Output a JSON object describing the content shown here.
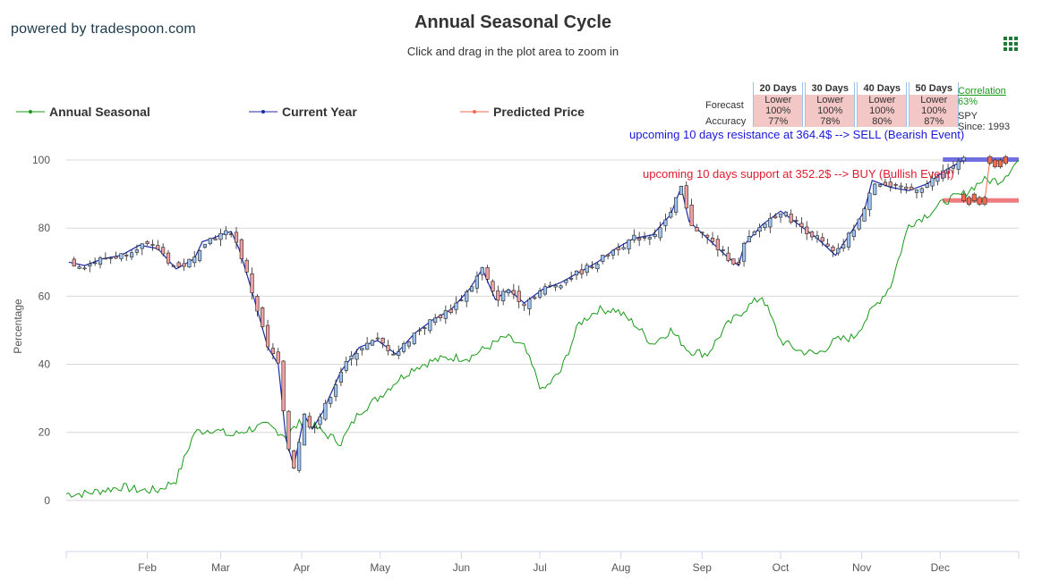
{
  "brand": "powered by tradespoon.com",
  "title": "Annual Seasonal Cycle",
  "subtitle": "Click and drag in the plot area to zoom in",
  "menu_icon": "grid-menu-icon",
  "legend": [
    {
      "label": "Annual Seasonal",
      "color": "#1a9a1a"
    },
    {
      "label": "Current Year",
      "color": "#1c2aa8"
    },
    {
      "label": "Predicted Price",
      "color": "#f26b4f"
    }
  ],
  "forecast": {
    "headers": [
      "20 Days",
      "30 Days",
      "40 Days",
      "50 Days"
    ],
    "rows": [
      {
        "label": "Forecast",
        "cells": [
          "Lower\n100%",
          "Lower\n100%",
          "Lower\n100%",
          "Lower\n100%"
        ]
      },
      {
        "label": "Accuracy",
        "cells": [
          "77%",
          "78%",
          "80%",
          "87%"
        ]
      }
    ]
  },
  "correlation": {
    "link": "Correlation",
    "value": "63%",
    "symbol": "SPY",
    "since": "Since: 1993"
  },
  "annotations": {
    "resistance": "upcoming 10 days resistance at 364.4$ --> SELL (Bearish Event)",
    "support": "upcoming 10 days support at 352.2$ --> BUY (Bullish Event)"
  },
  "colors": {
    "seasonal": "#1a9a1a",
    "current": "#1c2aa8",
    "predicted": "#f26b4f",
    "resistance": "#6f6fe0",
    "support": "#f07b80",
    "candle_up": "#9fc3f0",
    "candle_down": "#f0a0a0"
  },
  "chart_data": {
    "type": "line",
    "ylabel": "Percentage",
    "ylim": [
      -15,
      105
    ],
    "yticks": [
      0,
      20,
      40,
      60,
      80,
      100
    ],
    "x_range": [
      "Jan 1",
      "Dec 31"
    ],
    "xticks": [
      "Feb",
      "Mar",
      "Apr",
      "May",
      "Jun",
      "Jul",
      "Aug",
      "Sep",
      "Oct",
      "Nov",
      "Dec"
    ],
    "series": [
      {
        "name": "Annual Seasonal",
        "x": [
          1,
          8,
          15,
          22,
          29,
          36,
          43,
          50,
          57,
          64,
          71,
          78,
          85,
          92,
          99,
          106,
          113,
          120,
          127,
          134,
          141,
          148,
          155,
          162,
          169,
          176,
          183,
          190,
          197,
          204,
          211,
          218,
          225,
          232,
          239,
          246,
          253,
          260,
          267,
          274,
          281,
          288,
          295,
          302,
          309,
          316,
          323,
          330,
          337,
          344,
          351,
          358,
          365
        ],
        "values": [
          2,
          2,
          3,
          4,
          3,
          3,
          6,
          20,
          21,
          19,
          21,
          22,
          19,
          24,
          20,
          17,
          26,
          30,
          35,
          39,
          41,
          42,
          42,
          45,
          48,
          45,
          32,
          38,
          52,
          56,
          56,
          52,
          46,
          50,
          44,
          43,
          51,
          56,
          60,
          47,
          44,
          43,
          47,
          48,
          56,
          63,
          81,
          84,
          88,
          90,
          94,
          94,
          100
        ]
      },
      {
        "name": "Current Year",
        "x": [
          2,
          8,
          15,
          22,
          29,
          36,
          43,
          50,
          53,
          57,
          60,
          64,
          67,
          71,
          74,
          78,
          82,
          85,
          88,
          92,
          95,
          99,
          106,
          113,
          120,
          127,
          134,
          141,
          148,
          155,
          160,
          165,
          170,
          176,
          183,
          190,
          197,
          204,
          211,
          218,
          225,
          232,
          236,
          239,
          246,
          253,
          258,
          260,
          267,
          274,
          281,
          288,
          295,
          302,
          306,
          309,
          316,
          323,
          330,
          337,
          344
        ],
        "values": [
          70,
          69,
          71,
          72,
          75,
          74,
          68,
          71,
          76,
          77,
          78,
          79,
          74,
          64,
          56,
          45,
          40,
          18,
          10,
          25,
          21,
          26,
          38,
          45,
          47,
          43,
          49,
          53,
          56,
          62,
          68,
          59,
          62,
          58,
          62,
          64,
          67,
          70,
          74,
          77,
          78,
          84,
          92,
          82,
          77,
          72,
          69,
          75,
          81,
          85,
          81,
          77,
          72,
          80,
          85,
          94,
          92,
          91,
          93,
          97,
          100
        ]
      },
      {
        "name": "Predicted Price",
        "x": [
          344,
          346,
          348,
          350,
          352,
          354,
          356,
          358,
          360
        ],
        "values": [
          89,
          88,
          89,
          88,
          88,
          100,
          99,
          99,
          100
        ]
      }
    ],
    "levels": [
      {
        "name": "resistance",
        "value": 100,
        "x_from": 336,
        "x_to": 365
      },
      {
        "name": "support",
        "value": 88,
        "x_from": 336,
        "x_to": 365
      }
    ]
  }
}
